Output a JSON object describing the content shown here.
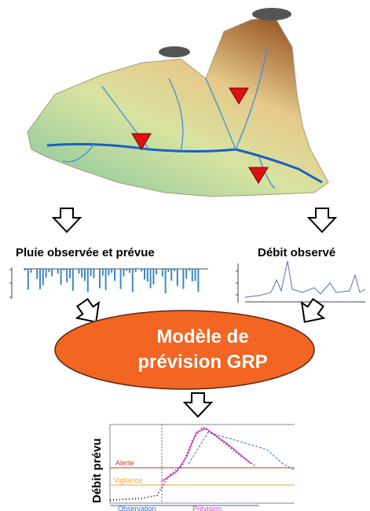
{
  "inputs": {
    "rainfall": "Pluie observée et prévue",
    "discharge": "Débit observé"
  },
  "model": {
    "lines": [
      "Modèle de",
      "prévision GRP"
    ]
  },
  "output": {
    "y_label": "Débit prévu",
    "thresholds": [
      "Alerte",
      "Vigilance"
    ],
    "periods": [
      "Observation",
      "Prévision"
    ]
  }
}
